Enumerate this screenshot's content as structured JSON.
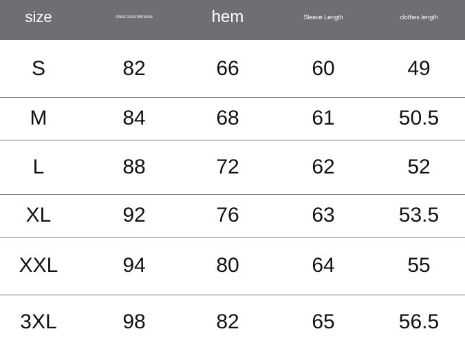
{
  "header": [
    "size",
    "chest circumference",
    "hem",
    "Sleeve Length",
    "clothes length"
  ],
  "rows": [
    [
      "S",
      "82",
      "66",
      "60",
      "49"
    ],
    [
      "M",
      "84",
      "68",
      "61",
      "50.5"
    ],
    [
      "L",
      "88",
      "72",
      "62",
      "52"
    ],
    [
      "XL",
      "92",
      "76",
      "63",
      "53.5"
    ],
    [
      "XXL",
      "94",
      "80",
      "64",
      "55"
    ],
    [
      "3XL",
      "98",
      "82",
      "65",
      "56.5"
    ]
  ],
  "colors": {
    "header_bg": "#6f6e73",
    "header_text": "#ffffff",
    "text": "#111111"
  }
}
